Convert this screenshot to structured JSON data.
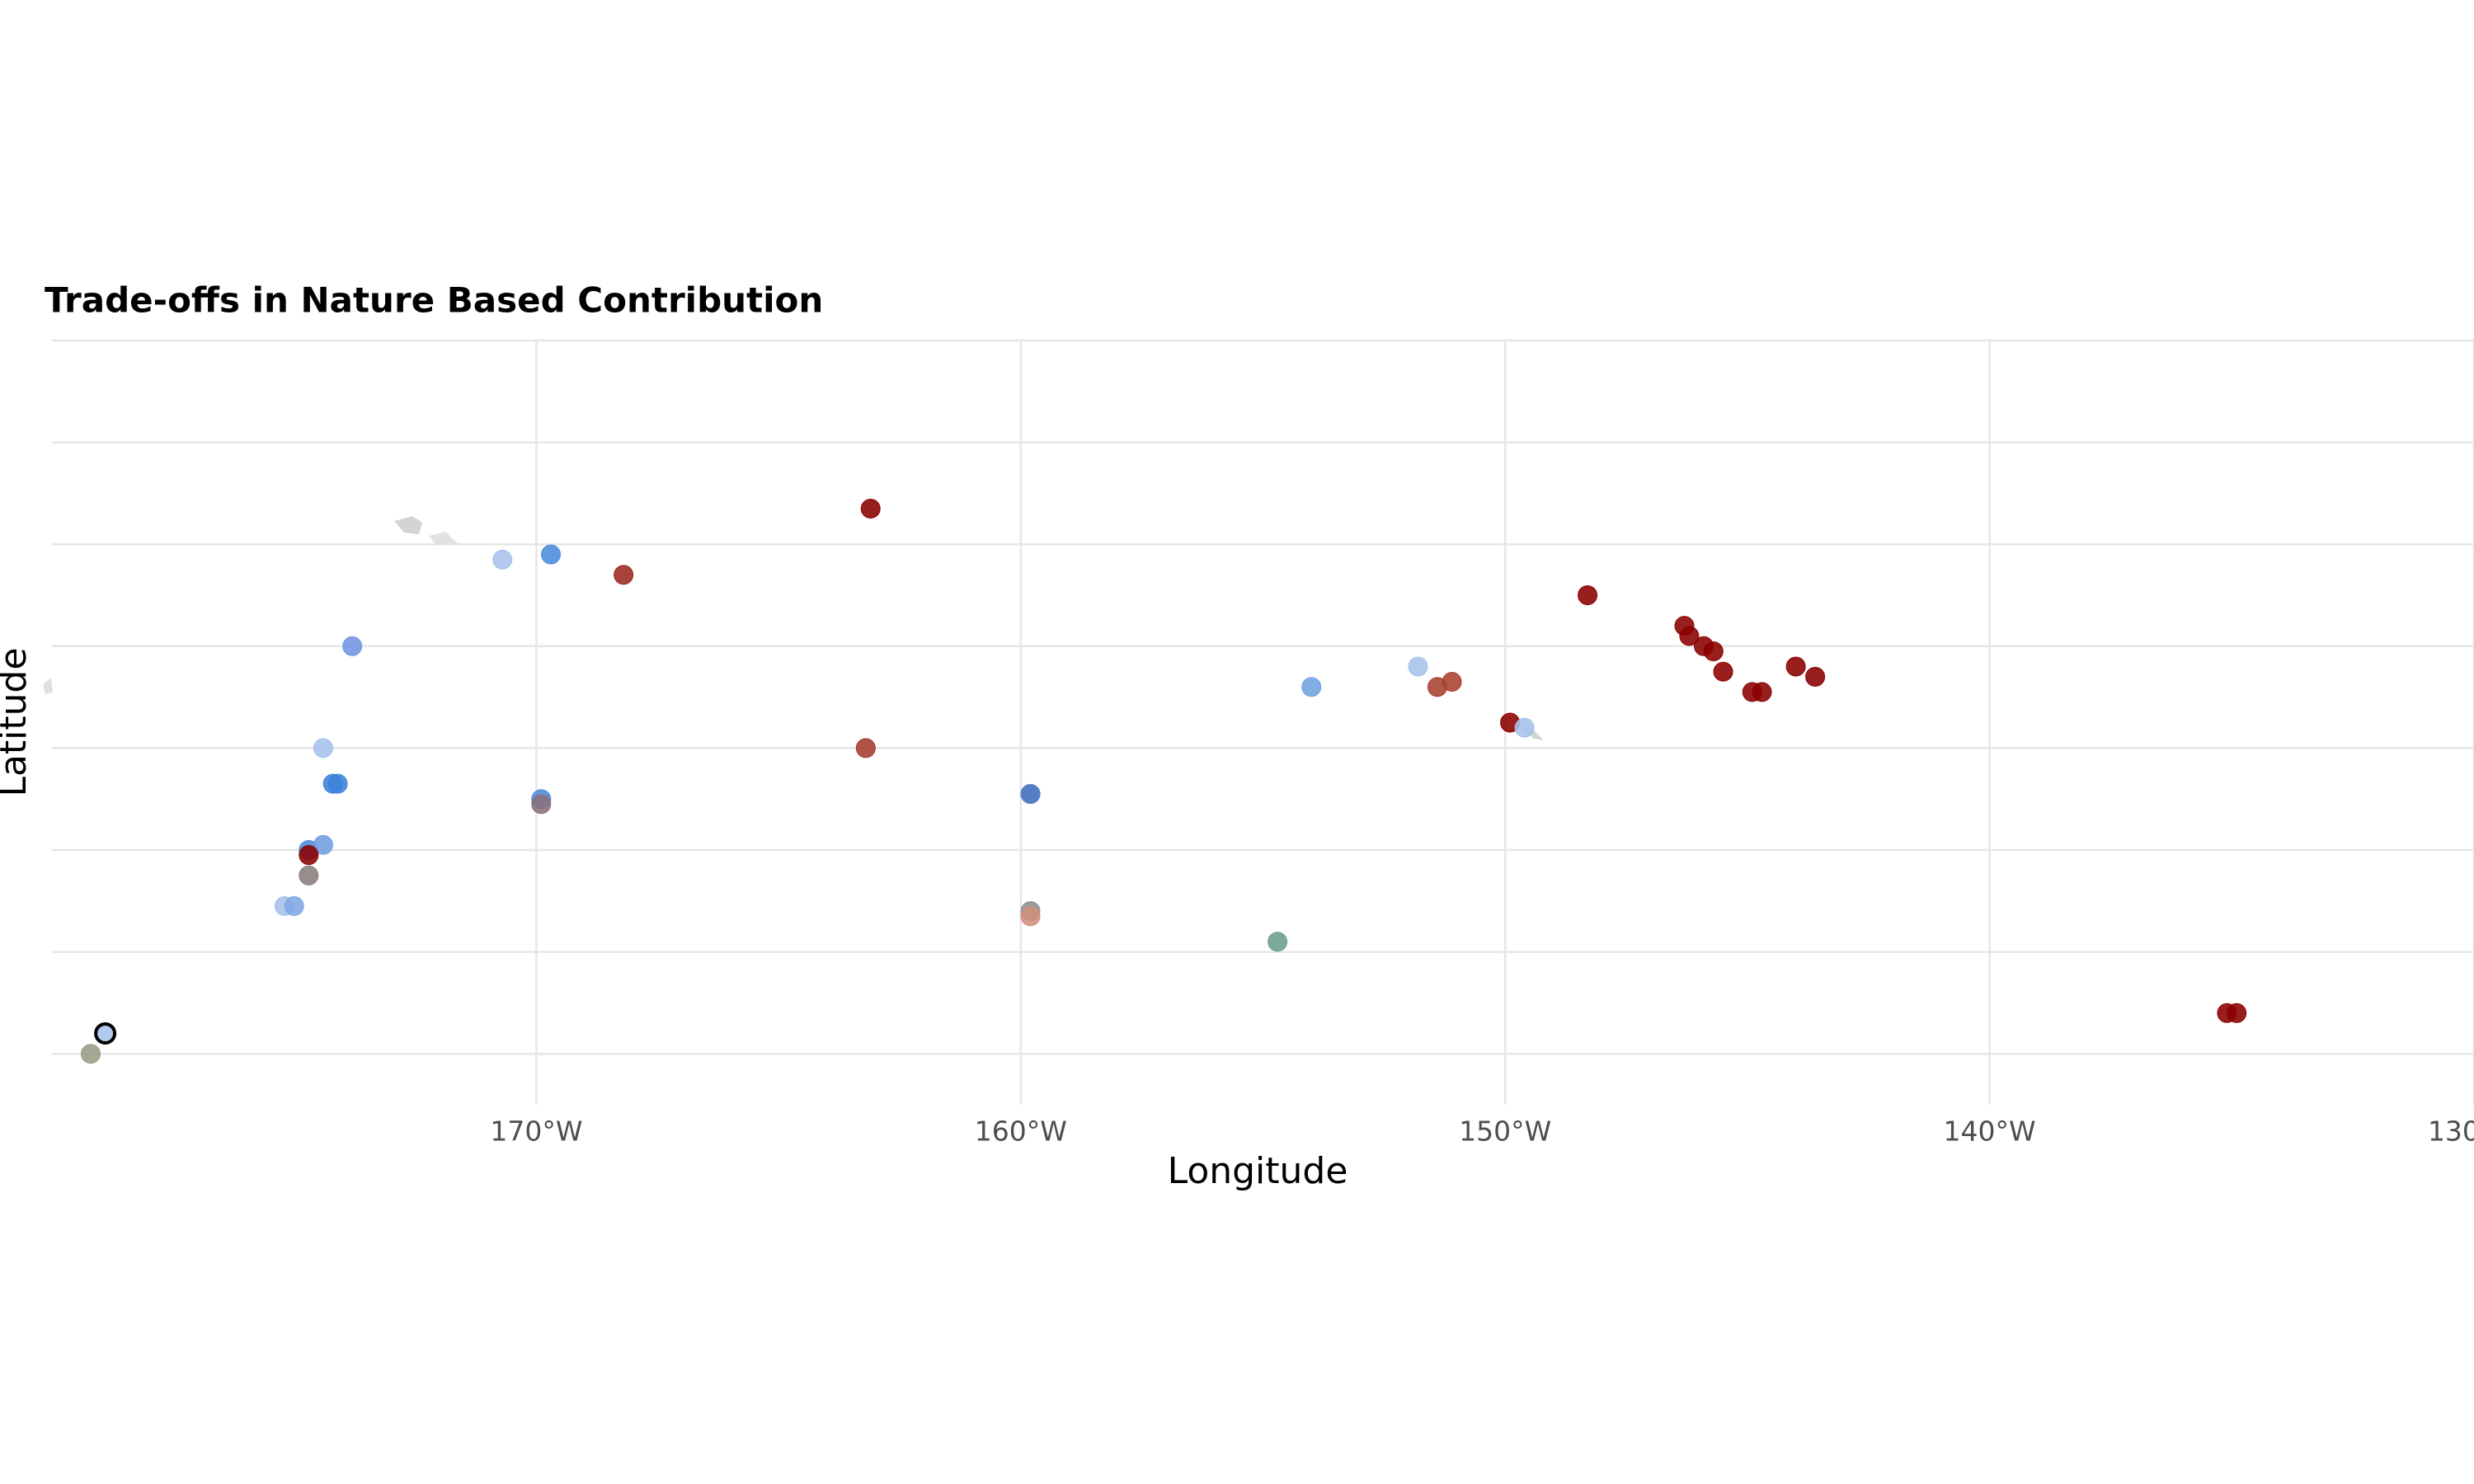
{
  "chart_data": {
    "type": "scatter",
    "title": "Trade-offs in Nature Based Contribution",
    "x_label": "Longitude",
    "y_label": "Latitude",
    "xlim": [
      -180,
      -130
    ],
    "ylim": [
      -25,
      -10
    ],
    "xticks": [
      {
        "value": -170,
        "label": "170°W"
      },
      {
        "value": -160,
        "label": "160°W"
      },
      {
        "value": -150,
        "label": "150°W"
      },
      {
        "value": -140,
        "label": "140°W"
      },
      {
        "value": -130,
        "label": "130°W"
      }
    ],
    "yticks": [
      -10,
      -12,
      -14,
      -16,
      -18,
      -20,
      -22,
      -24
    ],
    "grid": true,
    "x": [
      -163.1,
      -168.2,
      -169.7,
      -170.7,
      -173.8,
      -148.3,
      -146.3,
      -146.2,
      -145.9,
      -145.7,
      -145.5,
      -144.0,
      -143.6,
      -144.9,
      -144.7,
      -154.0,
      -151.8,
      -151.4,
      -151.1,
      -149.9,
      -149.6,
      -163.2,
      -159.8,
      -159.8,
      -174.4,
      -174.2,
      -174.1,
      -169.9,
      -169.9,
      -174.7,
      -174.4,
      -174.7,
      -174.7,
      -175.2,
      -175.0,
      -159.8,
      -159.8,
      -154.7,
      -135.1,
      -134.9,
      -178.9,
      -179.2
    ],
    "y": [
      -13.3,
      -14.6,
      -14.2,
      -14.3,
      -16.0,
      -15.0,
      -15.6,
      -15.8,
      -16.0,
      -16.1,
      -16.5,
      -16.4,
      -16.6,
      -16.9,
      -16.9,
      -16.8,
      -16.4,
      -16.8,
      -16.7,
      -17.5,
      -17.6,
      -18.0,
      -18.9,
      -18.9,
      -18.0,
      -18.7,
      -18.7,
      -19.0,
      -19.1,
      -20.0,
      -19.9,
      -20.1,
      -20.5,
      -21.1,
      -21.1,
      -21.2,
      -21.3,
      -21.8,
      -23.2,
      -23.2,
      -23.6,
      -24.0
    ],
    "colors": [
      "#8b0000",
      "#9b2a1f",
      "#4a8bdc",
      "#a6c1ec",
      "#6f95e2",
      "#8b0000",
      "#8b0000",
      "#8b0000",
      "#8b0000",
      "#8b0000",
      "#8b0000",
      "#8b0000",
      "#8b0000",
      "#8b0000",
      "#8b0000",
      "#6fa3e0",
      "#a6c1ec",
      "#a8402f",
      "#a8402f",
      "#8b0000",
      "#a6c1ec",
      "#a43c2e",
      "#8b0000",
      "#4a8bdc",
      "#a6c1ec",
      "#3b82d9",
      "#3b82d9",
      "#4a8bdc",
      "#8a6f7a",
      "#4a8bdc",
      "#6f9ee0",
      "#8b0000",
      "#8a7d7d",
      "#a6c1ec",
      "#7fa9e6",
      "#8f8d92",
      "#cf8f7a",
      "#6a9e8a",
      "#8b0000",
      "#8b0000",
      "#a6c1ec",
      "#9b9b86"
    ]
  }
}
